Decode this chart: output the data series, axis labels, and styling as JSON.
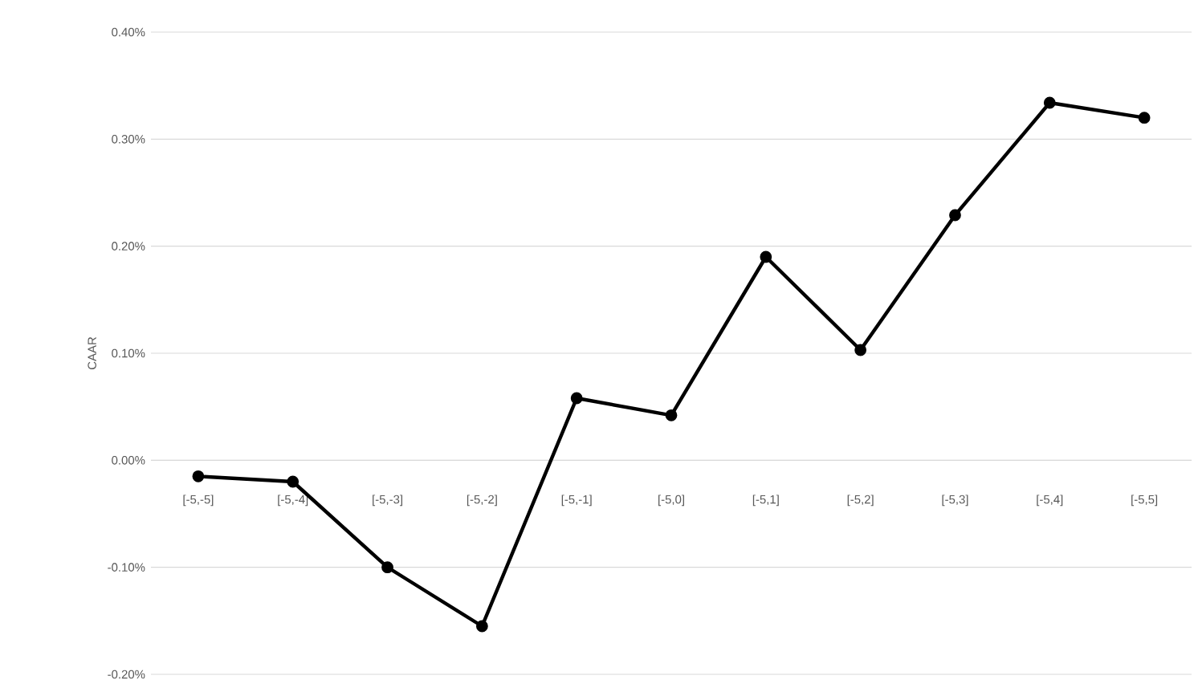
{
  "chart_data": {
    "type": "line",
    "ylabel": "CAAR",
    "categories": [
      "[-5,-5]",
      "[-5,-4]",
      "[-5,-3]",
      "[-5,-2]",
      "[-5,-1]",
      "[-5,0]",
      "[-5,1]",
      "[-5,2]",
      "[-5,3]",
      "[-5,4]",
      "[-5,5]"
    ],
    "series": [
      {
        "color": "#000000",
        "values": [
          -0.015,
          -0.02,
          -0.1,
          -0.155,
          0.058,
          0.042,
          0.19,
          0.103,
          0.229,
          0.334,
          0.32
        ]
      }
    ],
    "ylim": [
      -0.2,
      0.4
    ],
    "yticks": [
      {
        "value": -0.2,
        "label": "-0.20%"
      },
      {
        "value": -0.1,
        "label": "-0.10%"
      },
      {
        "value": 0,
        "label": "0.00%"
      },
      {
        "value": 0.1,
        "label": "0.10%"
      },
      {
        "value": 0.2,
        "label": "0.20%"
      },
      {
        "value": 0.3,
        "label": "0.30%"
      },
      {
        "value": 0.4,
        "label": "0.40%"
      }
    ],
    "grid": "y",
    "marker": "circle",
    "line_style": "solid"
  }
}
